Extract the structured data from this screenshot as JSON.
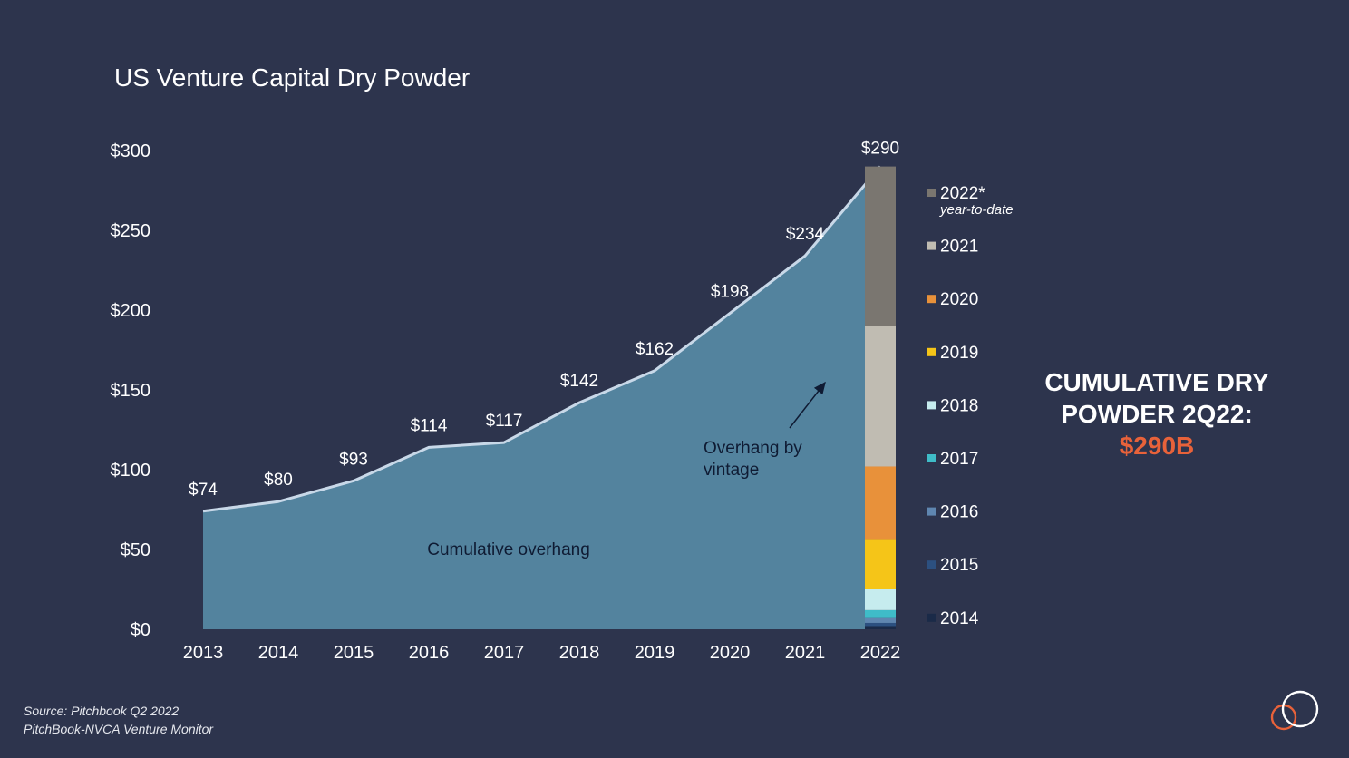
{
  "title": "US Venture Capital Dry Powder",
  "colors": {
    "background": "#2d344d",
    "area_fill": "#53839e",
    "line": "#c8d8e8",
    "text": "#ffffff",
    "accent": "#e8623a"
  },
  "chart_data": {
    "type": "area",
    "categories": [
      "2013",
      "2014",
      "2015",
      "2016",
      "2017",
      "2018",
      "2019",
      "2020",
      "2021",
      "2022"
    ],
    "values": [
      74,
      80,
      93,
      114,
      117,
      142,
      162,
      198,
      234,
      290
    ],
    "data_labels": [
      "$74",
      "$80",
      "$93",
      "$114",
      "$117",
      "$142",
      "$162",
      "$198",
      "$234",
      "$290"
    ],
    "ylim": [
      0,
      300
    ],
    "yticks": [
      0,
      50,
      100,
      150,
      200,
      250,
      300
    ],
    "ytick_labels": [
      "$0",
      "$50",
      "$100",
      "$150",
      "$200",
      "$250",
      "$300"
    ],
    "grid": false,
    "area_label": "Cumulative overhang",
    "annotation": "Overhang by vintage",
    "stacked_bar": {
      "category": "2022",
      "segments": [
        {
          "vintage": "2014",
          "color": "#1a2a48",
          "value": 2
        },
        {
          "vintage": "2015",
          "color": "#2c5080",
          "value": 2
        },
        {
          "vintage": "2016",
          "color": "#5f86b0",
          "value": 3
        },
        {
          "vintage": "2017",
          "color": "#3fbcc8",
          "value": 5
        },
        {
          "vintage": "2018",
          "color": "#c6ecee",
          "value": 13
        },
        {
          "vintage": "2019",
          "color": "#f5c518",
          "value": 31
        },
        {
          "vintage": "2020",
          "color": "#e8913a",
          "value": 46
        },
        {
          "vintage": "2021",
          "color": "#c0bcb2",
          "value": 88
        },
        {
          "vintage": "2022*",
          "color": "#7a7670",
          "value": 100
        }
      ]
    },
    "legend": {
      "placement": "right",
      "entries": [
        {
          "label": "2022*",
          "sublabel": "year-to-date",
          "color": "#7a7670"
        },
        {
          "label": "2021",
          "color": "#c0bcb2"
        },
        {
          "label": "2020",
          "color": "#e8913a"
        },
        {
          "label": "2019",
          "color": "#f5c518"
        },
        {
          "label": "2018",
          "color": "#c6ecee"
        },
        {
          "label": "2017",
          "color": "#3fbcc8"
        },
        {
          "label": "2016",
          "color": "#5f86b0"
        },
        {
          "label": "2015",
          "color": "#2c5080"
        },
        {
          "label": "2014",
          "color": "#1a2a48"
        }
      ]
    }
  },
  "side_note": {
    "line1": "CUMULATIVE DRY",
    "line2": "POWDER 2Q22:",
    "amount": "$290B"
  },
  "source": {
    "line1": "Source: Pitchbook Q2 2022",
    "line2": "PitchBook-NVCA Venture Monitor"
  },
  "logo_icon": "interlocking-circles-logo"
}
